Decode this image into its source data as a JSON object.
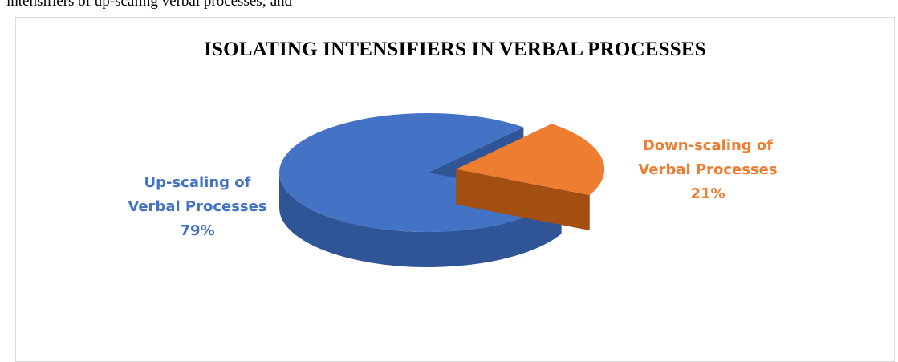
{
  "page_text": "intensifiers of up-scaling verbal processes; and",
  "chart_data": {
    "type": "pie",
    "title": "ISOLATING INTENSIFIERS IN VERBAL PROCESSES",
    "categories": [
      "Up-scaling of Verbal Processes",
      "Down-scaling of Verbal Processes"
    ],
    "values": [
      79,
      21
    ],
    "value_labels": [
      "79%",
      "21%"
    ],
    "label_lines": [
      [
        "Up-scaling of",
        "Verbal Processes",
        "79%"
      ],
      [
        "Down-scaling of",
        "Verbal Processes",
        "21%"
      ]
    ],
    "colors": [
      "#4472c4",
      "#ed7d31"
    ],
    "dark_colors": [
      "#2f5597",
      "#a34f12"
    ],
    "style": "3d-exploded",
    "legend": "none"
  }
}
